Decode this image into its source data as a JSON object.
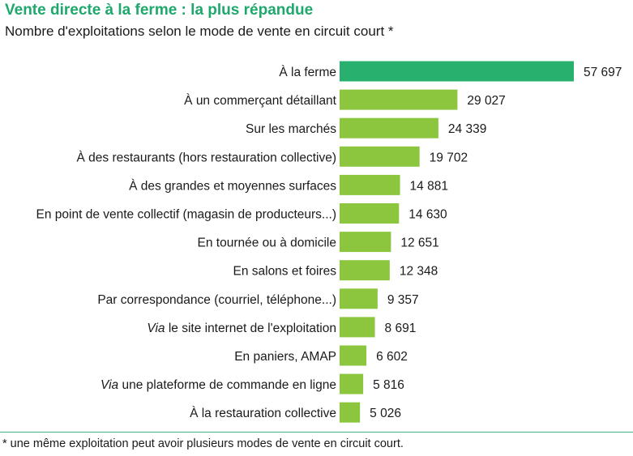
{
  "colors": {
    "title": "#1ea86b",
    "highlight_bar": "#27b06e",
    "bar": "#8cc63f",
    "rule": "#3fb883"
  },
  "chart_data": {
    "type": "bar",
    "orientation": "horizontal",
    "title": "Vente directe à la ferme : la plus répandue",
    "subtitle": "Nombre d'exploitations selon le mode de vente en circuit court *",
    "categories": [
      {
        "pre_italic": "",
        "text": "À la ferme"
      },
      {
        "pre_italic": "",
        "text": "À un commerçant détaillant"
      },
      {
        "pre_italic": "",
        "text": "Sur les marchés"
      },
      {
        "pre_italic": "",
        "text": "À des restaurants (hors restauration collective)"
      },
      {
        "pre_italic": "",
        "text": "À des grandes et moyennes surfaces"
      },
      {
        "pre_italic": "",
        "text": "En point de vente collectif (magasin de producteurs...)"
      },
      {
        "pre_italic": "",
        "text": "En tournée ou à domicile"
      },
      {
        "pre_italic": "",
        "text": "En salons et foires"
      },
      {
        "pre_italic": "",
        "text": "Par correspondance (courriel, téléphone...)"
      },
      {
        "pre_italic": "Via",
        "text": " le site internet de l'exploitation"
      },
      {
        "pre_italic": "",
        "text": "En paniers, AMAP"
      },
      {
        "pre_italic": "Via",
        "text": " une plateforme de commande en ligne"
      },
      {
        "pre_italic": "",
        "text": "À la restauration collective"
      }
    ],
    "values": [
      57697,
      29027,
      24339,
      19702,
      14881,
      14630,
      12651,
      12348,
      9357,
      8691,
      6602,
      5816,
      5026
    ],
    "value_labels": [
      "57 697",
      "29 027",
      "24 339",
      "19 702",
      "14 881",
      "14 630",
      "12 651",
      "12 348",
      "9 357",
      "8 691",
      "6 602",
      "5 816",
      "5 026"
    ],
    "highlight_index": 0,
    "xlim": [
      0,
      57697
    ],
    "grid": false,
    "legend": "none"
  },
  "footnote": "* une même exploitation peut avoir plusieurs modes de vente en circuit court."
}
